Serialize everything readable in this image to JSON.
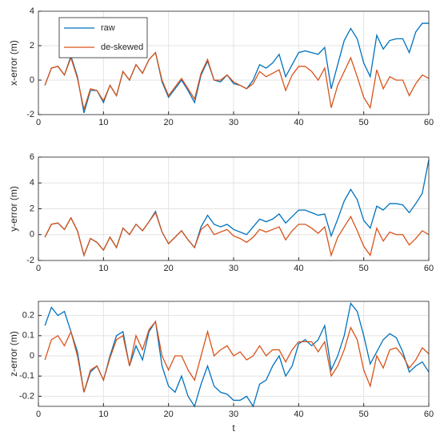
{
  "chart_data": [
    {
      "type": "line",
      "ylabel": "x-error (m)",
      "legend": "top-left",
      "grid": true,
      "x": [
        1,
        2,
        3,
        4,
        5,
        6,
        7,
        8,
        9,
        10,
        11,
        12,
        13,
        14,
        15,
        16,
        17,
        18,
        19,
        20,
        21,
        22,
        23,
        24,
        25,
        26,
        27,
        28,
        29,
        30,
        31,
        32,
        33,
        34,
        35,
        36,
        37,
        38,
        39,
        40,
        41,
        42,
        43,
        44,
        45,
        46,
        47,
        48,
        49,
        50,
        51,
        52,
        53,
        54,
        55,
        56,
        57,
        58,
        59,
        60
      ],
      "xlim": [
        0,
        60
      ],
      "xticks": [
        0,
        10,
        20,
        30,
        40,
        50,
        60
      ],
      "ylim": [
        -2,
        4
      ],
      "yticks": [
        -2,
        0,
        2,
        4
      ],
      "series": [
        {
          "name": "raw",
          "color": "#0072bd",
          "values": [
            -0.3,
            0.7,
            0.8,
            0.3,
            1.4,
            0.2,
            -1.9,
            -0.6,
            -0.6,
            -1.3,
            -0.3,
            -0.9,
            0.5,
            0.0,
            0.9,
            0.4,
            1.2,
            1.6,
            -0.1,
            -1.0,
            -0.5,
            0.0,
            -0.6,
            -1.3,
            0.3,
            1.1,
            0.0,
            -0.1,
            0.3,
            -0.2,
            -0.3,
            -0.5,
            0.0,
            0.9,
            0.7,
            1.0,
            1.5,
            0.2,
            0.9,
            1.6,
            1.7,
            1.6,
            1.5,
            1.9,
            -0.5,
            0.9,
            2.3,
            3.0,
            2.4,
            1.0,
            0.2,
            2.6,
            1.8,
            2.3,
            2.4,
            2.4,
            1.6,
            2.8,
            3.3,
            3.3
          ]
        },
        {
          "name": "de-skewed",
          "color": "#d95319",
          "values": [
            -0.3,
            0.7,
            0.8,
            0.3,
            1.3,
            0.1,
            -1.7,
            -0.5,
            -0.6,
            -1.2,
            -0.3,
            -0.9,
            0.5,
            0.0,
            0.9,
            0.4,
            1.2,
            1.6,
            0.0,
            -0.9,
            -0.4,
            0.1,
            -0.5,
            -1.1,
            0.4,
            1.2,
            0.0,
            0.0,
            0.3,
            -0.1,
            -0.3,
            -0.5,
            -0.2,
            0.5,
            0.2,
            0.4,
            0.6,
            -0.6,
            0.3,
            0.8,
            0.8,
            0.5,
            0.0,
            0.7,
            -1.6,
            -0.3,
            0.5,
            1.3,
            0.2,
            -1.0,
            -1.6,
            0.6,
            -0.5,
            0.2,
            0.0,
            0.0,
            -0.9,
            -0.2,
            0.3,
            0.1
          ]
        }
      ]
    },
    {
      "type": "line",
      "ylabel": "y-error (m)",
      "grid": true,
      "x": [
        1,
        2,
        3,
        4,
        5,
        6,
        7,
        8,
        9,
        10,
        11,
        12,
        13,
        14,
        15,
        16,
        17,
        18,
        19,
        20,
        21,
        22,
        23,
        24,
        25,
        26,
        27,
        28,
        29,
        30,
        31,
        32,
        33,
        34,
        35,
        36,
        37,
        38,
        39,
        40,
        41,
        42,
        43,
        44,
        45,
        46,
        47,
        48,
        49,
        50,
        51,
        52,
        53,
        54,
        55,
        56,
        57,
        58,
        59,
        60
      ],
      "xlim": [
        0,
        60
      ],
      "xticks": [
        0,
        10,
        20,
        30,
        40,
        50,
        60
      ],
      "ylim": [
        -2,
        6
      ],
      "yticks": [
        -2,
        0,
        2,
        4,
        6
      ],
      "series": [
        {
          "name": "raw",
          "color": "#0072bd",
          "values": [
            -0.2,
            0.8,
            0.9,
            0.4,
            1.3,
            0.3,
            -1.6,
            -0.3,
            -0.6,
            -1.2,
            -0.2,
            -1.0,
            0.5,
            0.0,
            0.8,
            0.3,
            1.0,
            1.8,
            0.2,
            -0.7,
            -0.2,
            0.3,
            -0.4,
            -1.0,
            0.6,
            1.5,
            0.8,
            0.6,
            0.8,
            0.4,
            0.2,
            0.0,
            0.6,
            1.2,
            1.0,
            1.2,
            1.6,
            0.9,
            1.4,
            1.9,
            1.9,
            1.7,
            1.5,
            1.6,
            -0.1,
            1.2,
            2.6,
            3.5,
            2.7,
            1.1,
            0.5,
            2.2,
            1.9,
            2.4,
            2.4,
            2.3,
            1.7,
            2.4,
            3.2,
            5.8
          ]
        },
        {
          "name": "de-skewed",
          "color": "#d95319",
          "values": [
            -0.2,
            0.8,
            0.9,
            0.4,
            1.3,
            0.3,
            -1.6,
            -0.3,
            -0.6,
            -1.2,
            -0.2,
            -1.0,
            0.5,
            0.0,
            0.8,
            0.3,
            1.0,
            1.7,
            0.2,
            -0.7,
            -0.2,
            0.3,
            -0.4,
            -1.0,
            0.4,
            0.8,
            0.0,
            0.2,
            0.4,
            -0.1,
            -0.3,
            -0.6,
            -0.2,
            0.4,
            0.2,
            0.4,
            0.6,
            -0.4,
            0.3,
            0.8,
            0.8,
            0.5,
            0.1,
            0.6,
            -1.6,
            -0.2,
            0.6,
            1.4,
            0.3,
            -0.9,
            -1.6,
            0.5,
            -0.5,
            0.2,
            0.0,
            0.0,
            -0.8,
            -0.3,
            0.3,
            0.0
          ]
        }
      ]
    },
    {
      "type": "line",
      "ylabel": "z-error (m)",
      "xlabel": "t",
      "grid": true,
      "x": [
        1,
        2,
        3,
        4,
        5,
        6,
        7,
        8,
        9,
        10,
        11,
        12,
        13,
        14,
        15,
        16,
        17,
        18,
        19,
        20,
        21,
        22,
        23,
        24,
        25,
        26,
        27,
        28,
        29,
        30,
        31,
        32,
        33,
        34,
        35,
        36,
        37,
        38,
        39,
        40,
        41,
        42,
        43,
        44,
        45,
        46,
        47,
        48,
        49,
        50,
        51,
        52,
        53,
        54,
        55,
        56,
        57,
        58,
        59,
        60
      ],
      "xlim": [
        0,
        60
      ],
      "xticks": [
        0,
        10,
        20,
        30,
        40,
        50,
        60
      ],
      "ylim": [
        -0.25,
        0.27
      ],
      "yticks": [
        -0.2,
        -0.1,
        0,
        0.1,
        0.2
      ],
      "series": [
        {
          "name": "raw",
          "color": "#0072bd",
          "values": [
            0.15,
            0.24,
            0.2,
            0.22,
            0.12,
            0.02,
            -0.18,
            -0.08,
            -0.05,
            -0.12,
            0.0,
            0.1,
            0.12,
            -0.05,
            0.05,
            -0.02,
            0.12,
            0.17,
            -0.05,
            -0.15,
            -0.18,
            -0.1,
            -0.2,
            -0.25,
            -0.14,
            -0.05,
            -0.15,
            -0.18,
            -0.19,
            -0.22,
            -0.22,
            -0.2,
            -0.25,
            -0.14,
            -0.12,
            -0.05,
            0.0,
            -0.1,
            -0.05,
            0.06,
            0.08,
            0.05,
            0.08,
            0.15,
            -0.07,
            0.0,
            0.1,
            0.26,
            0.22,
            0.1,
            -0.04,
            0.02,
            0.08,
            0.11,
            0.09,
            0.02,
            -0.08,
            -0.05,
            -0.03,
            -0.08
          ]
        },
        {
          "name": "de-skewed",
          "color": "#d95319",
          "values": [
            -0.02,
            0.08,
            0.1,
            0.05,
            0.12,
            0.0,
            -0.18,
            -0.07,
            -0.05,
            -0.12,
            -0.01,
            0.08,
            0.1,
            -0.05,
            0.1,
            0.03,
            0.13,
            0.17,
            0.0,
            -0.07,
            0.0,
            0.0,
            -0.07,
            -0.12,
            0.0,
            0.12,
            0.0,
            0.03,
            0.05,
            0.0,
            0.02,
            -0.02,
            0.0,
            0.05,
            0.0,
            0.03,
            0.03,
            -0.03,
            0.03,
            0.07,
            0.07,
            0.07,
            0.02,
            0.07,
            -0.1,
            -0.05,
            0.03,
            0.14,
            0.08,
            -0.07,
            -0.15,
            0.0,
            -0.06,
            0.03,
            0.04,
            0.0,
            -0.06,
            -0.02,
            0.04,
            0.01
          ]
        }
      ]
    }
  ]
}
